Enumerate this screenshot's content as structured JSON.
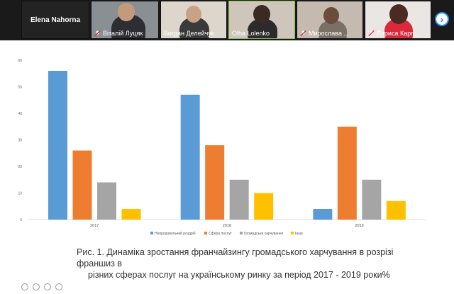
{
  "participants": [
    {
      "name": "Elena Nahorna",
      "muted": false,
      "video": false
    },
    {
      "name": "Віталій Луцяк",
      "muted": true,
      "video": true
    },
    {
      "name": "Богдан Делейчук",
      "muted": false,
      "video": true
    },
    {
      "name": "Olha Lolenko",
      "muted": false,
      "video": true,
      "active": true
    },
    {
      "name": "Мирослава ...",
      "muted": true,
      "video": true
    },
    {
      "name": "Лариса Карп...",
      "muted": true,
      "video": true
    }
  ],
  "nav": {
    "next_icon": "chevron-right-icon",
    "next_label": "›"
  },
  "caption": {
    "line1": "Рис. 1. Динаміка зростання франчайзингу громадського харчування в розрізі франшиз в",
    "line2": "різних сферах послуг на українському ринку за період 2017 - 2019 роки%"
  },
  "colors": {
    "series1": "#5b9bd5",
    "series2": "#ed7d31",
    "series3": "#a5a5a5",
    "series4": "#ffc000",
    "active_border": "#7fc241",
    "nav": "#2d8cff"
  },
  "chart_data": {
    "type": "bar",
    "categories": [
      "2017",
      "2018",
      "2019"
    ],
    "series": [
      {
        "name": "Непродовольчий роздріб",
        "values": [
          56,
          47,
          4
        ]
      },
      {
        "name": "Сфера послуг",
        "values": [
          26,
          28,
          35
        ]
      },
      {
        "name": "Громадське харчування",
        "values": [
          14,
          15,
          15
        ]
      },
      {
        "name": "Інше",
        "values": [
          4,
          10,
          7
        ]
      }
    ],
    "ylim": [
      0,
      60
    ],
    "yticks": [
      "0",
      "10",
      "20",
      "30",
      "40",
      "50",
      "60"
    ],
    "grid": false,
    "legend": "bottom"
  }
}
